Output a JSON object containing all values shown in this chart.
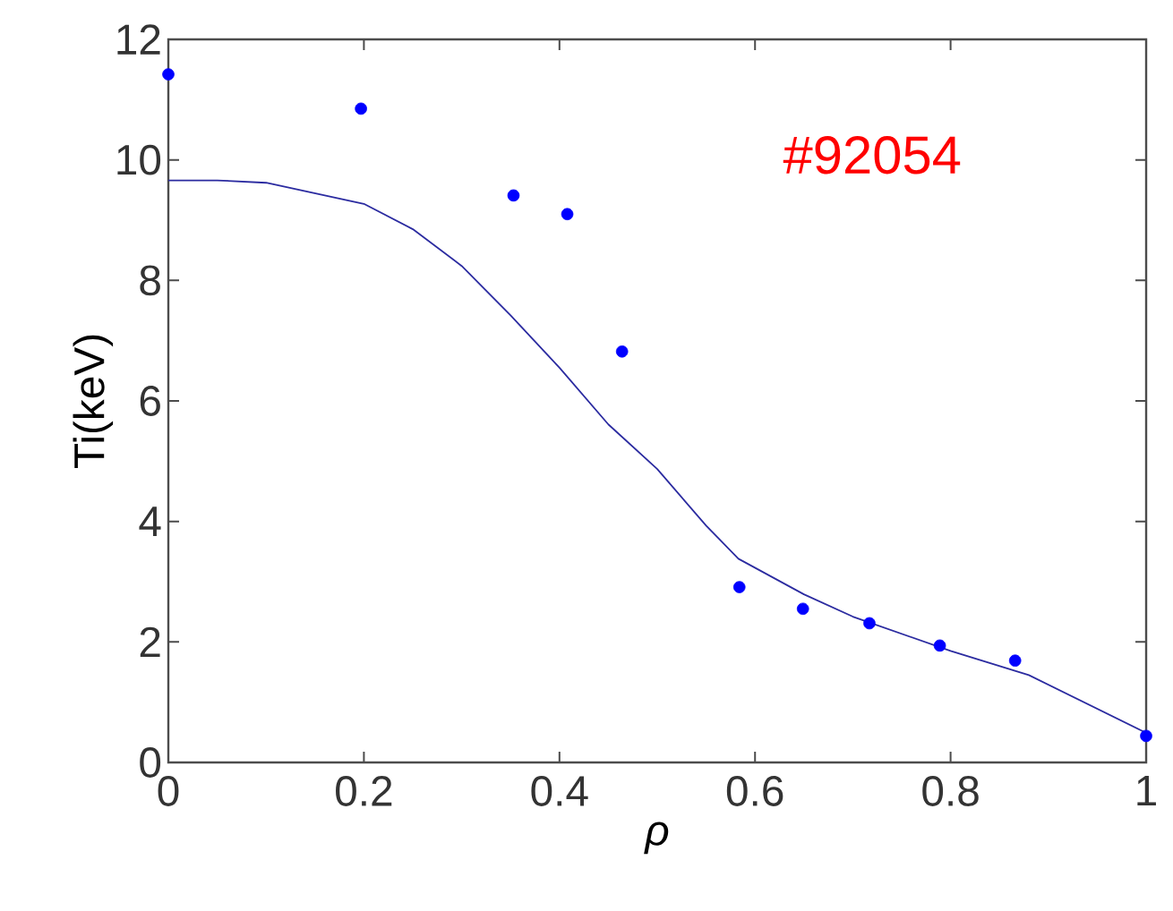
{
  "chart_data": {
    "type": "scatter",
    "xlabel": "ρ",
    "ylabel": "Ti(keV)",
    "annotations": [
      "#92054"
    ],
    "xlim": [
      0,
      1
    ],
    "ylim": [
      0,
      12
    ],
    "xticks": [
      0,
      0.2,
      0.4,
      0.6,
      0.8,
      1
    ],
    "yticks": [
      0,
      2,
      4,
      6,
      8,
      10,
      12
    ],
    "grid": false,
    "series": [
      {
        "marker": "circle",
        "color": "#0000ff",
        "x": [
          0,
          0.197,
          0.353,
          0.408,
          0.464,
          0.584,
          0.649,
          0.717,
          0.789,
          0.866,
          1.0
        ],
        "values": [
          11.42,
          10.85,
          9.41,
          9.1,
          6.82,
          2.91,
          2.55,
          2.31,
          1.94,
          1.69,
          0.44
        ]
      },
      {
        "type": "line",
        "marker": "none",
        "line_style": "solid",
        "color": "#2b2ba0",
        "x": [
          0,
          0.05,
          0.1,
          0.2,
          0.25,
          0.3,
          0.35,
          0.4,
          0.45,
          0.5,
          0.55,
          0.583,
          0.65,
          0.7,
          0.8,
          0.88,
          1.0
        ],
        "values": [
          9.66,
          9.66,
          9.62,
          9.27,
          8.85,
          8.24,
          7.42,
          6.55,
          5.61,
          4.87,
          3.93,
          3.38,
          2.79,
          2.42,
          1.85,
          1.45,
          0.49
        ]
      }
    ]
  }
}
